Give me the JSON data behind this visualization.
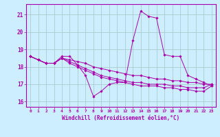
{
  "background_color": "#cceeff",
  "grid_color": "#aacccc",
  "line_color": "#aa00aa",
  "marker_color": "#aa00aa",
  "xlabel": "Windchill (Refroidissement éolien,°C)",
  "xlim": [
    -0.5,
    23.5
  ],
  "ylim": [
    15.7,
    21.6
  ],
  "yticks": [
    16,
    17,
    18,
    19,
    20,
    21
  ],
  "xticks": [
    0,
    1,
    2,
    3,
    4,
    5,
    6,
    7,
    8,
    9,
    10,
    11,
    12,
    13,
    14,
    15,
    16,
    17,
    18,
    19,
    20,
    21,
    22,
    23
  ],
  "series": [
    [
      18.6,
      18.4,
      18.2,
      18.2,
      18.6,
      18.6,
      18.1,
      17.5,
      16.3,
      16.6,
      17.0,
      17.1,
      17.1,
      19.5,
      21.2,
      20.9,
      20.8,
      18.7,
      18.6,
      18.6,
      17.5,
      17.3,
      17.1,
      16.9
    ],
    [
      18.6,
      18.4,
      18.2,
      18.2,
      18.5,
      18.2,
      18.0,
      17.8,
      17.6,
      17.4,
      17.3,
      17.2,
      17.1,
      17.0,
      16.9,
      16.9,
      16.9,
      16.8,
      16.8,
      16.7,
      16.7,
      16.6,
      16.6,
      16.9
    ],
    [
      18.6,
      18.4,
      18.2,
      18.2,
      18.5,
      18.3,
      18.1,
      17.9,
      17.7,
      17.5,
      17.4,
      17.3,
      17.2,
      17.1,
      17.1,
      17.0,
      17.0,
      17.0,
      16.9,
      16.9,
      16.8,
      16.8,
      16.8,
      17.0
    ],
    [
      18.6,
      18.4,
      18.2,
      18.2,
      18.5,
      18.4,
      18.3,
      18.2,
      18.0,
      17.9,
      17.8,
      17.7,
      17.6,
      17.5,
      17.5,
      17.4,
      17.3,
      17.3,
      17.2,
      17.2,
      17.1,
      17.1,
      17.0,
      17.0
    ]
  ],
  "figsize": [
    3.2,
    2.0
  ],
  "dpi": 100
}
